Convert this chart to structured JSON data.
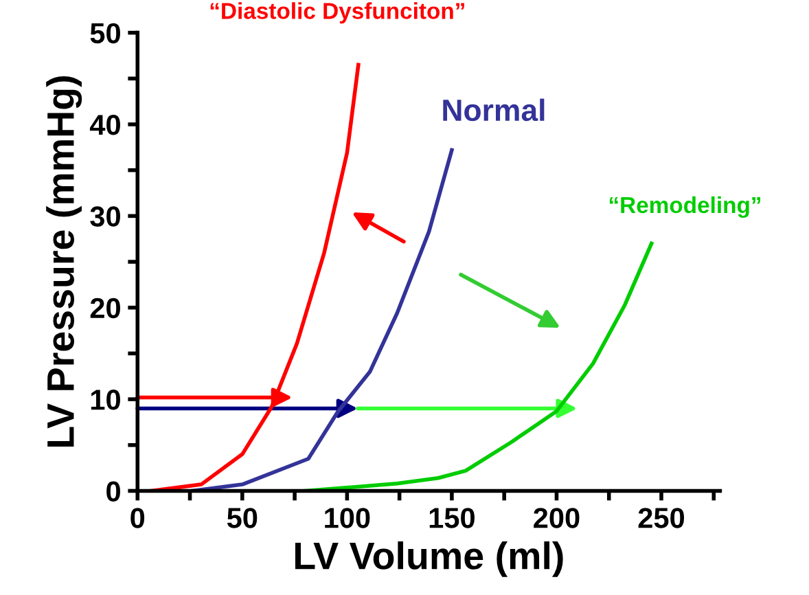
{
  "chart_data": {
    "type": "line",
    "xlabel": "LV Volume (ml)",
    "ylabel": "LV Pressure (mmHg)",
    "xlim": [
      0,
      278
    ],
    "ylim": [
      0,
      50
    ],
    "xticks": [
      0,
      {
        "value": 25,
        "label": null
      },
      50,
      {
        "value": 75,
        "label": null
      },
      100,
      {
        "value": 125,
        "label": null
      },
      150,
      {
        "value": 175,
        "label": null
      },
      200,
      {
        "value": 225,
        "label": null
      },
      250,
      {
        "value": 275,
        "label": null
      }
    ],
    "yticks": [
      0,
      {
        "value": 5,
        "label": null
      },
      10,
      {
        "value": 15,
        "label": null
      },
      20,
      {
        "value": 25,
        "label": null
      },
      30,
      {
        "value": 35,
        "label": null
      },
      40,
      {
        "value": 45,
        "label": null
      },
      50
    ],
    "grid": false,
    "legend": false,
    "marker": "none",
    "line_style": "solid",
    "series": [
      {
        "name": "“Diastolic Dysfunciton”",
        "color": "#ff0000",
        "x": [
          6.5,
          30.4,
          50,
          64.1,
          76.1,
          89.1,
          100,
          105.4
        ],
        "values": [
          0,
          0.7,
          4.0,
          9.2,
          16.1,
          26.0,
          36.9,
          46.5
        ]
      },
      {
        "name": "Normal",
        "color": "#333399",
        "x": [
          26,
          50,
          81.5,
          95.5,
          110.9,
          123.9,
          139.1,
          150
        ],
        "values": [
          0,
          0.7,
          3.5,
          8.6,
          13.0,
          19.4,
          28.3,
          37.2
        ]
      },
      {
        "name": "“Remodeling”",
        "color": "#00cc00",
        "x": [
          80,
          91.3,
          123.9,
          143.5,
          156.6,
          178.3,
          200,
          217.4,
          232.6,
          245.3
        ],
        "values": [
          0,
          0.2,
          0.8,
          1.4,
          2.2,
          5.3,
          8.7,
          13.9,
          20.3,
          27.0
        ]
      }
    ]
  }
}
